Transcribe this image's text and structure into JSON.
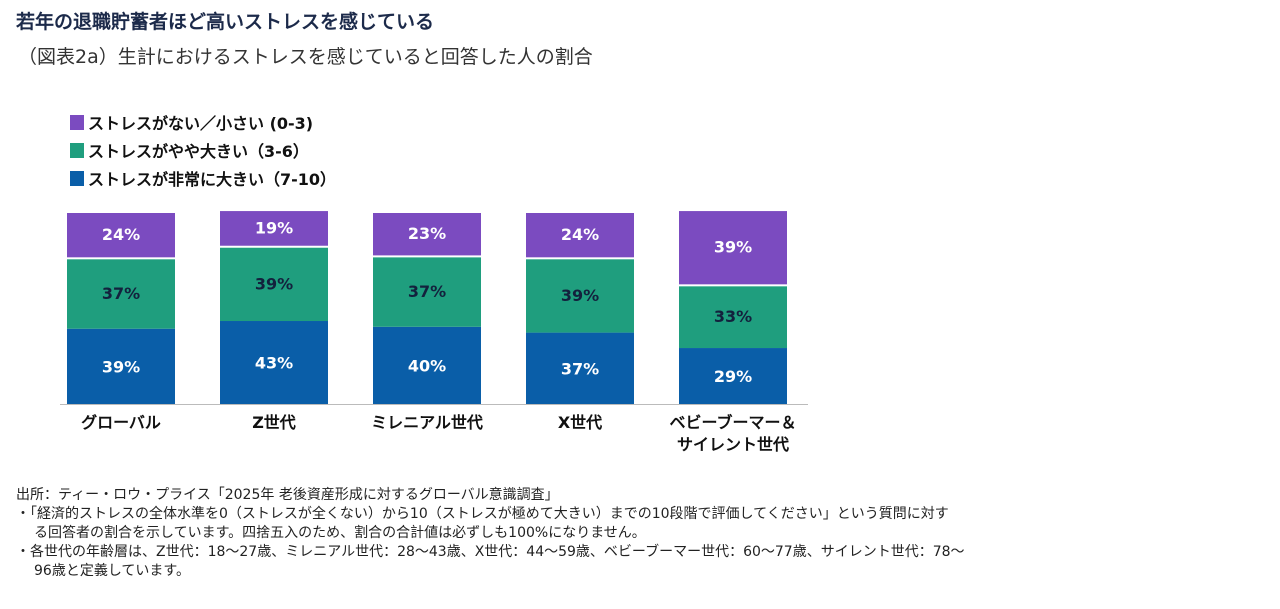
{
  "title": "若年の退職貯蓄者ほど高いストレスを感じている",
  "subtitle": "（図表2a）生計におけるストレスを感じていると回答した人の割合",
  "chart_data": {
    "type": "bar",
    "stacked": true,
    "categories": [
      "グローバル",
      "Z世代",
      "ミレニアル世代",
      "X世代",
      "ベビーブーマー＆\nサイレント世代"
    ],
    "series": [
      {
        "name": "ストレスが非常に大きい（7-10）",
        "color": "#0A5EA8",
        "label_color": "#ffffff",
        "values": [
          39,
          43,
          40,
          37,
          29
        ]
      },
      {
        "name": "ストレスがやや大きい（3-6）",
        "color": "#1F9E7E",
        "label_color": "#13213d",
        "values": [
          37,
          39,
          37,
          39,
          33
        ]
      },
      {
        "name": "ストレスがない／小さい (0-3)",
        "color": "#7B4BC0",
        "label_color": "#ffffff",
        "values": [
          24,
          19,
          23,
          24,
          39
        ]
      }
    ],
    "legend_order": [
      "ストレスがない／小さい (0-3)",
      "ストレスがやや大きい（3-6）",
      "ストレスが非常に大きい（7-10）"
    ],
    "value_suffix": "%",
    "legend_placement": "top-left",
    "grid": false
  },
  "notes": {
    "source": "出所：ティー・ロウ・プライス「2025年 老後資産形成に対するグローバル意識調査」",
    "note1_line1": "・「経済的ストレスの全体水準を0（ストレスが全くない）から10（ストレスが極めて大きい）までの10段階で評価してください」という質問に対す",
    "note1_line2": "る回答者の割合を示しています。四捨五入のため、割合の合計値は必ずしも100%になりません。",
    "note2_line1": "・各世代の年齢層は、Z世代：18～27歳、ミレニアル世代：28～43歳、X世代：44～59歳、ベビーブーマー世代：60～77歳、サイレント世代：78～",
    "note2_line2": "96歳と定義しています。"
  }
}
